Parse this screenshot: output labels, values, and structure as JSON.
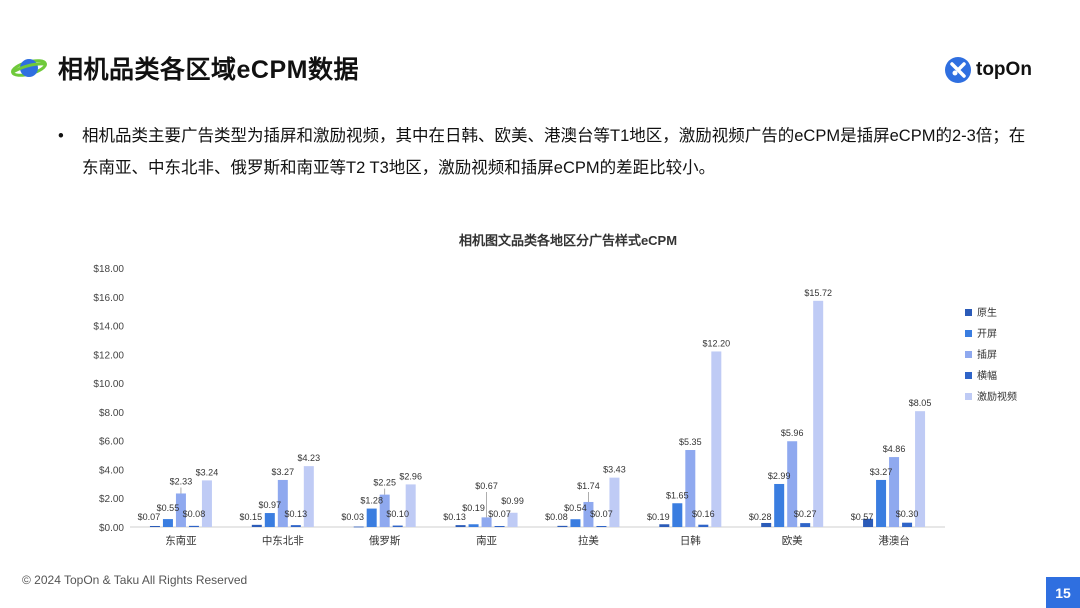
{
  "header": {
    "title": "相机品类各区域eCPM数据",
    "brand": "topOn"
  },
  "body": {
    "bullet_text": "相机品类主要广告类型为插屏和激励视频，其中在日韩、欧美、港澳台等T1地区，激励视频广告的eCPM是插屏eCPM的2-3倍；在东南亚、中东北非、俄罗斯和南亚等T2 T3地区，激励视频和插屏eCPM的差距比较小。"
  },
  "footer": {
    "copyright": "© 2024 TopOn & Taku All Rights Reserved",
    "page_number": "15"
  },
  "icons": {
    "planet": "planet-icon",
    "brand": "topon-logo-icon"
  },
  "colors": {
    "accent": "#2f6fe0"
  },
  "chart_data": {
    "type": "bar",
    "title": "相机图文品类各地区分广告样式eCPM",
    "categories": [
      "东南亚",
      "中东北非",
      "俄罗斯",
      "南亚",
      "拉美",
      "日韩",
      "欧美",
      "港澳台"
    ],
    "series": [
      {
        "name": "原生",
        "color": "#2b5bb8",
        "values": [
          0.07,
          0.15,
          0.03,
          0.13,
          0.08,
          0.19,
          0.28,
          0.57
        ],
        "labels": [
          "$0.07",
          "$0.15",
          "$0.03",
          "$0.13",
          "$0.08",
          "$0.19",
          "$0.28",
          "$0.57"
        ]
      },
      {
        "name": "开屏",
        "color": "#3a7de0",
        "values": [
          0.55,
          0.97,
          1.28,
          0.19,
          0.54,
          1.65,
          2.99,
          3.27
        ],
        "labels": [
          "$0.55",
          "$0.97",
          "$1.28",
          "$0.19",
          "$0.54",
          "$1.65",
          "$2.99",
          "$3.27"
        ]
      },
      {
        "name": "插屏",
        "color": "#8fa9ef",
        "values": [
          2.33,
          3.27,
          2.25,
          0.67,
          1.74,
          5.35,
          5.96,
          4.86
        ],
        "labels": [
          "$2.33",
          "$3.27",
          "$2.25",
          "$0.67",
          "$1.74",
          "$5.35",
          "$5.96",
          "$4.86"
        ]
      },
      {
        "name": "横幅",
        "color": "#2f64c8",
        "values": [
          0.08,
          0.13,
          0.1,
          0.07,
          0.07,
          0.16,
          0.27,
          0.3
        ],
        "labels": [
          "$0.08",
          "$0.13",
          "$0.10",
          "$0.07",
          "$0.07",
          "$0.16",
          "$0.27",
          "$0.30"
        ]
      },
      {
        "name": "激励视频",
        "color": "#bfcbf5",
        "values": [
          3.24,
          4.23,
          2.96,
          0.99,
          3.43,
          12.2,
          15.72,
          8.05
        ],
        "labels": [
          "$3.24",
          "$4.23",
          "$2.96",
          "$0.99",
          "$3.43",
          "$12.20",
          "$15.72",
          "$8.05"
        ]
      }
    ],
    "ylim": [
      0,
      18
    ],
    "yticks": [
      "$0.00",
      "$2.00",
      "$4.00",
      "$6.00",
      "$8.00",
      "$10.00",
      "$12.00",
      "$14.00",
      "$16.00",
      "$18.00"
    ],
    "grid": false,
    "legend": "right"
  }
}
